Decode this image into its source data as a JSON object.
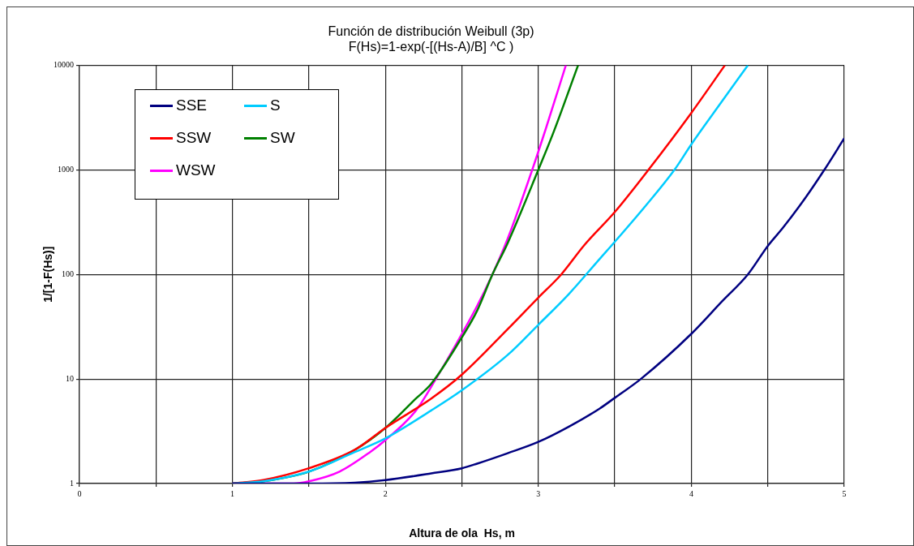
{
  "chart_data": {
    "type": "line",
    "title": "Función de distribución Weibull (3p)",
    "subtitle": "F(Hs)=1-exp(-[(Hs-A)/B] ^C )",
    "xlabel": "Altura de ola  Hs, m",
    "ylabel": "1/[1-F(Hs)]",
    "xlim": [
      0,
      5
    ],
    "xticks": [
      0,
      {
        "value": 0.5,
        "label": null
      },
      1,
      {
        "value": 1.5,
        "label": null
      },
      2,
      {
        "value": 2.5,
        "label": null
      },
      3,
      {
        "value": 3.5,
        "label": null
      },
      4,
      {
        "value": 4.5,
        "label": null
      },
      5
    ],
    "ylim": [
      1,
      10000
    ],
    "yticks": [
      1,
      10,
      100,
      1000,
      10000
    ],
    "log": "y",
    "grid": true,
    "legend": "top left",
    "marker": "none",
    "line_style": "solid",
    "series": [
      {
        "name": "SSE",
        "color": "#000080",
        "x": [
          1,
          1.5,
          1.8,
          2,
          2.3,
          2.5,
          2.6,
          2.8,
          3,
          3.2,
          3.4,
          3.5,
          3.67,
          4,
          4.2,
          4.37,
          4.5,
          4.6,
          4.75,
          4.87,
          5
        ],
        "values": [
          1,
          1,
          1.02,
          1.08,
          1.25,
          1.4,
          1.55,
          1.95,
          2.5,
          3.5,
          5.2,
          6.6,
          10,
          27,
          55,
          100,
          187,
          280,
          550,
          1000,
          2000
        ]
      },
      {
        "name": "S",
        "color": "#00ccff",
        "x": [
          1,
          1.2,
          1.5,
          1.8,
          2,
          2.3,
          2.5,
          2.8,
          3,
          3.2,
          3.4,
          3.5,
          3.7,
          3.89,
          4,
          4.2,
          4.37
        ],
        "values": [
          1,
          1.05,
          1.3,
          2,
          2.7,
          5,
          7.8,
          17,
          33,
          65,
          140,
          205,
          450,
          1000,
          1750,
          4500,
          10000
        ]
      },
      {
        "name": "SSW",
        "color": "#ff0000",
        "x": [
          1,
          1.2,
          1.5,
          1.8,
          2,
          2.3,
          2.5,
          2.8,
          3,
          3.15,
          3.3,
          3.5,
          3.72,
          4,
          4.22
        ],
        "values": [
          1,
          1.08,
          1.4,
          2.1,
          3.4,
          6.5,
          11,
          30,
          60,
          100,
          190,
          395,
          1000,
          3500,
          10000
        ]
      },
      {
        "name": "SW",
        "color": "#008000",
        "x": [
          1,
          1.2,
          1.5,
          1.8,
          2,
          2.2,
          2.3,
          2.5,
          2.6,
          2.7,
          2.8,
          3,
          3.1,
          3.26
        ],
        "values": [
          1,
          1.05,
          1.3,
          2.1,
          3.4,
          6.5,
          9,
          25,
          45,
          100,
          200,
          1000,
          2300,
          10000
        ]
      },
      {
        "name": "WSW",
        "color": "#ff00ff",
        "x": [
          1,
          1.4,
          1.5,
          1.7,
          1.9,
          2,
          2.2,
          2.33,
          2.5,
          2.6,
          2.7,
          2.8,
          2.96,
          3.05,
          3.18
        ],
        "values": [
          1,
          1,
          1.05,
          1.3,
          2,
          2.6,
          5,
          10,
          27,
          50,
          100,
          220,
          1000,
          2500,
          10000
        ]
      }
    ]
  }
}
